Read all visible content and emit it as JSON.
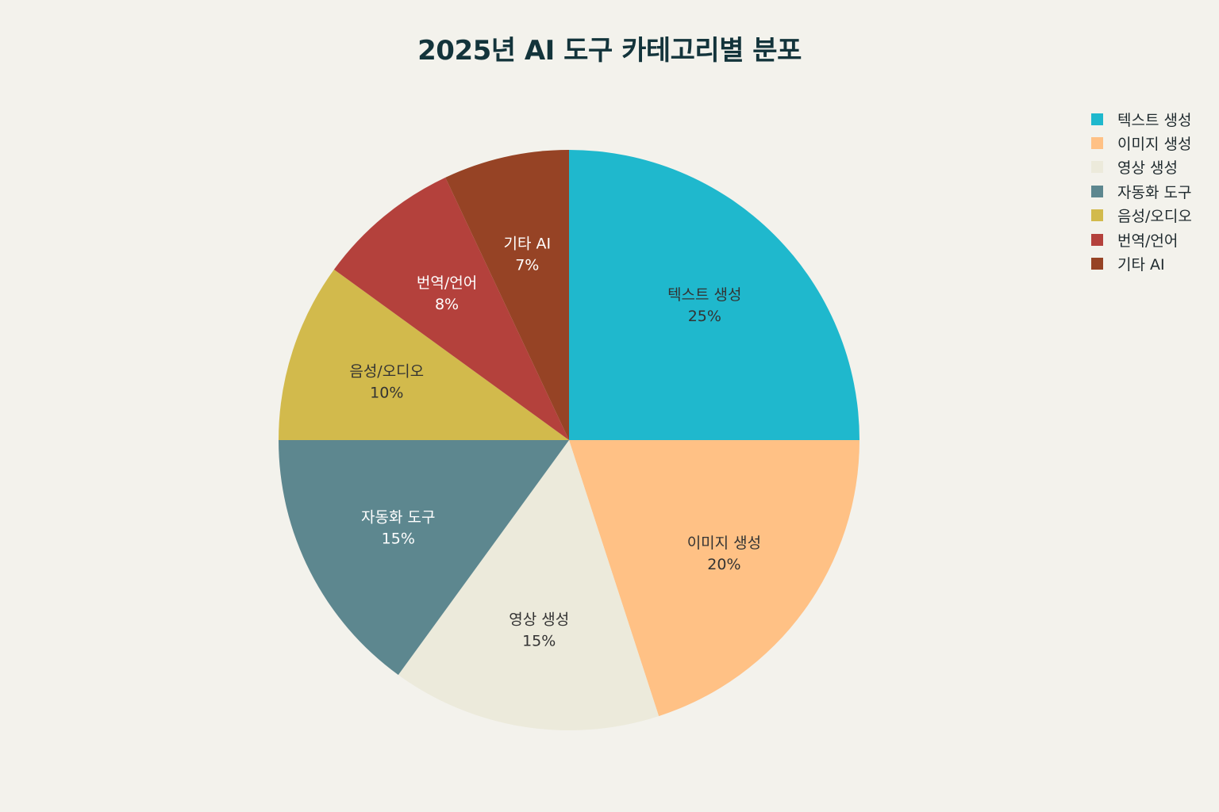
{
  "chart_data": {
    "type": "pie",
    "title": "2025년 AI 도구 카테고리별 분포",
    "legend_position": "top-right",
    "slices": [
      {
        "label": "텍스트 생성",
        "value": 25,
        "value_label": "25%",
        "color": "#1fb8cd",
        "text_color": "#333333"
      },
      {
        "label": "이미지 생성",
        "value": 20,
        "value_label": "20%",
        "color": "#ffc185",
        "text_color": "#333333"
      },
      {
        "label": "영상 생성",
        "value": 15,
        "value_label": "15%",
        "color": "#eceadb",
        "text_color": "#333333"
      },
      {
        "label": "자동화 도구",
        "value": 15,
        "value_label": "15%",
        "color": "#5d878f",
        "text_color": "#ffffff"
      },
      {
        "label": "음성/오디오",
        "value": 10,
        "value_label": "10%",
        "color": "#d2ba4c",
        "text_color": "#333333"
      },
      {
        "label": "번역/언어",
        "value": 8,
        "value_label": "8%",
        "color": "#b4413c",
        "text_color": "#ffffff"
      },
      {
        "label": "기타 AI",
        "value": 7,
        "value_label": "7%",
        "color": "#964325",
        "text_color": "#ffffff"
      }
    ]
  }
}
